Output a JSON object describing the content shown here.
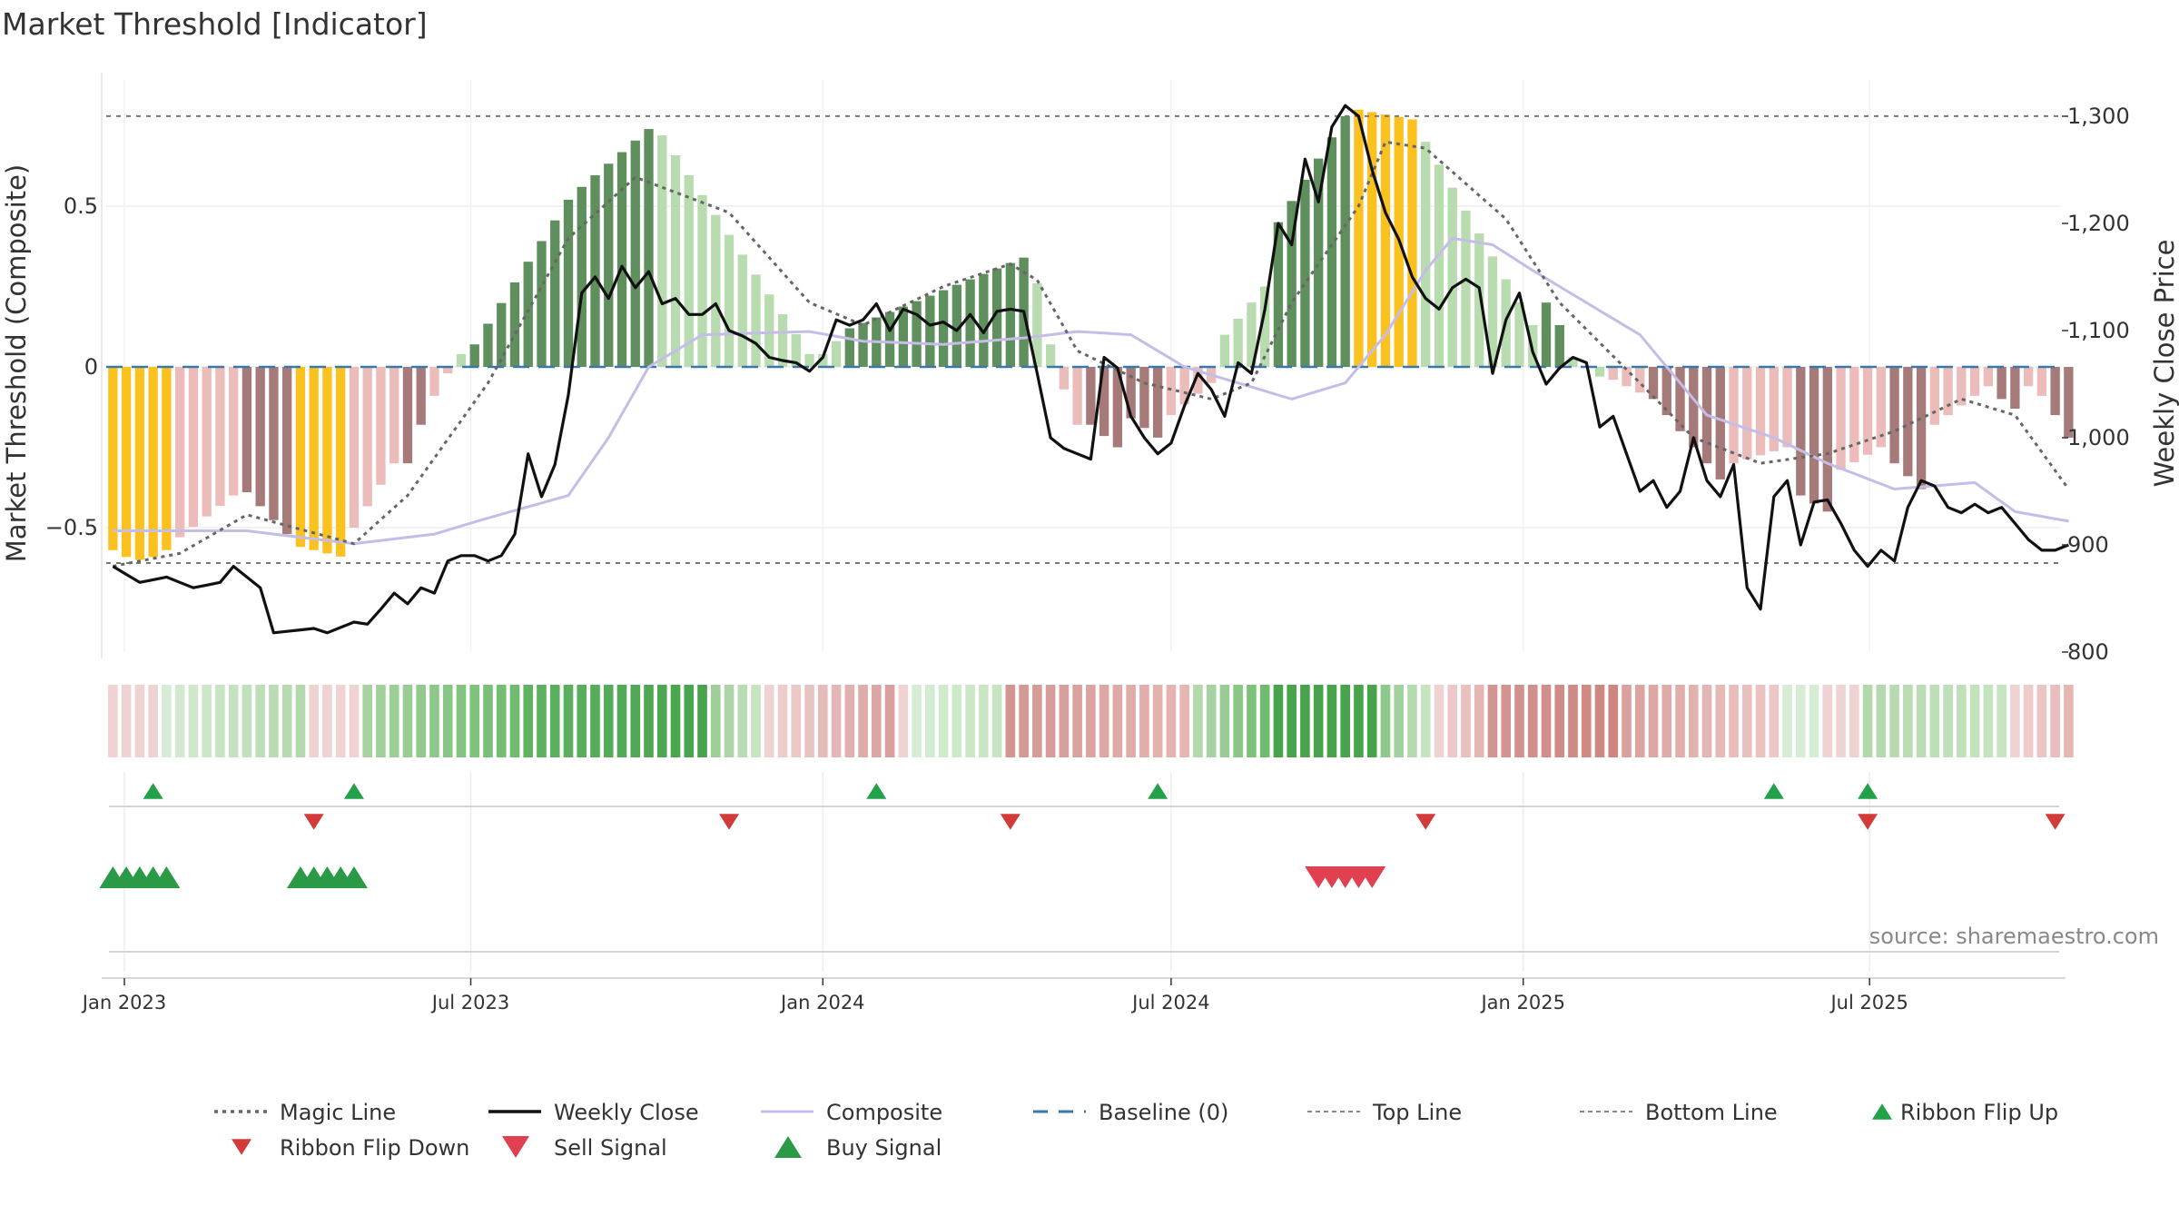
{
  "chart_data": {
    "type": "composite-indicator",
    "title": "Market Threshold [Indicator]",
    "ylabel_left": "Market Threshold (Composite)",
    "ylabel_right": "Weekly Close Price",
    "source": "source: sharemaestro.com",
    "start_date": "2022-12-26",
    "weeks": 146,
    "left_axis": {
      "ticks": [
        "0.5",
        "0",
        "−0.5"
      ],
      "tick_values": [
        0.5,
        0,
        -0.5
      ]
    },
    "right_axis": {
      "ticks": [
        "800",
        "900",
        "1,000",
        "1,100",
        "1,200",
        "1,300"
      ],
      "tick_values": [
        800,
        900,
        1000,
        1100,
        1200,
        1300
      ]
    },
    "x_ticks": [
      "Jan 2023",
      "Jul 2023",
      "Jan 2024",
      "Jul 2024",
      "Jan 2025",
      "Jul 2025"
    ],
    "x_tick_dates": [
      "2023-01-01",
      "2023-07-01",
      "2024-01-01",
      "2024-07-01",
      "2025-01-01",
      "2025-07-01"
    ],
    "top_line": 0.78,
    "bottom_line": -0.61,
    "baseline": 0,
    "composite_anchors": [
      [
        0,
        -0.51
      ],
      [
        10,
        -0.51
      ],
      [
        18,
        -0.55
      ],
      [
        24,
        -0.52
      ],
      [
        28,
        -0.47
      ],
      [
        34,
        -0.4
      ],
      [
        37,
        -0.22
      ],
      [
        40,
        0.0
      ],
      [
        44,
        0.1
      ],
      [
        52,
        0.11
      ],
      [
        56,
        0.08
      ],
      [
        62,
        0.07
      ],
      [
        68,
        0.09
      ],
      [
        72,
        0.11
      ],
      [
        76,
        0.1
      ],
      [
        80,
        0.0
      ],
      [
        84,
        -0.05
      ],
      [
        88,
        -0.1
      ],
      [
        92,
        -0.05
      ],
      [
        95,
        0.1
      ],
      [
        98,
        0.3
      ],
      [
        100,
        0.4
      ],
      [
        103,
        0.38
      ],
      [
        106,
        0.3
      ],
      [
        110,
        0.2
      ],
      [
        114,
        0.1
      ],
      [
        117,
        -0.05
      ],
      [
        119,
        -0.15
      ],
      [
        124,
        -0.22
      ],
      [
        128,
        -0.3
      ],
      [
        133,
        -0.38
      ],
      [
        139,
        -0.36
      ],
      [
        142,
        -0.45
      ],
      [
        146,
        -0.48
      ]
    ],
    "magic_anchors": [
      [
        0,
        -0.62
      ],
      [
        5,
        -0.58
      ],
      [
        10,
        -0.46
      ],
      [
        18,
        -0.55
      ],
      [
        22,
        -0.4
      ],
      [
        28,
        -0.05
      ],
      [
        34,
        0.4
      ],
      [
        39,
        0.59
      ],
      [
        46,
        0.48
      ],
      [
        52,
        0.2
      ],
      [
        56,
        0.13
      ],
      [
        62,
        0.25
      ],
      [
        67,
        0.32
      ],
      [
        69,
        0.27
      ],
      [
        72,
        0.05
      ],
      [
        77,
        -0.05
      ],
      [
        82,
        -0.1
      ],
      [
        85,
        -0.05
      ],
      [
        88,
        0.2
      ],
      [
        93,
        0.5
      ],
      [
        95,
        0.7
      ],
      [
        98,
        0.68
      ],
      [
        104,
        0.46
      ],
      [
        108,
        0.2
      ],
      [
        114,
        -0.05
      ],
      [
        118,
        -0.22
      ],
      [
        123,
        -0.3
      ],
      [
        128,
        -0.27
      ],
      [
        133,
        -0.2
      ],
      [
        138,
        -0.1
      ],
      [
        142,
        -0.15
      ],
      [
        146,
        -0.38
      ]
    ],
    "price_anchors": [
      [
        0,
        880
      ],
      [
        2,
        865
      ],
      [
        4,
        870
      ],
      [
        6,
        860
      ],
      [
        8,
        865
      ],
      [
        9,
        880
      ],
      [
        11,
        860
      ],
      [
        12,
        818
      ],
      [
        15,
        822
      ],
      [
        16,
        818
      ],
      [
        18,
        828
      ],
      [
        19,
        826
      ],
      [
        20,
        840
      ],
      [
        21,
        855
      ],
      [
        22,
        845
      ],
      [
        23,
        860
      ],
      [
        24,
        855
      ],
      [
        25,
        885
      ],
      [
        26,
        890
      ],
      [
        27,
        890
      ],
      [
        28,
        885
      ],
      [
        29,
        890
      ],
      [
        30,
        910
      ],
      [
        31,
        985
      ],
      [
        32,
        945
      ],
      [
        33,
        975
      ],
      [
        34,
        1040
      ],
      [
        35,
        1135
      ],
      [
        36,
        1150
      ],
      [
        37,
        1130
      ],
      [
        38,
        1160
      ],
      [
        39,
        1140
      ],
      [
        40,
        1155
      ],
      [
        41,
        1125
      ],
      [
        42,
        1130
      ],
      [
        43,
        1115
      ],
      [
        44,
        1115
      ],
      [
        45,
        1125
      ],
      [
        46,
        1100
      ],
      [
        47,
        1095
      ],
      [
        48,
        1088
      ],
      [
        49,
        1075
      ],
      [
        50,
        1072
      ],
      [
        51,
        1070
      ],
      [
        52,
        1062
      ],
      [
        53,
        1075
      ],
      [
        54,
        1110
      ],
      [
        55,
        1105
      ],
      [
        56,
        1110
      ],
      [
        57,
        1125
      ],
      [
        58,
        1100
      ],
      [
        59,
        1120
      ],
      [
        60,
        1115
      ],
      [
        61,
        1105
      ],
      [
        62,
        1108
      ],
      [
        63,
        1100
      ],
      [
        64,
        1115
      ],
      [
        65,
        1098
      ],
      [
        66,
        1118
      ],
      [
        67,
        1120
      ],
      [
        68,
        1118
      ],
      [
        69,
        1060
      ],
      [
        70,
        1000
      ],
      [
        71,
        990
      ],
      [
        72,
        985
      ],
      [
        73,
        980
      ],
      [
        74,
        1075
      ],
      [
        75,
        1065
      ],
      [
        76,
        1020
      ],
      [
        77,
        1000
      ],
      [
        78,
        985
      ],
      [
        79,
        995
      ],
      [
        80,
        1030
      ],
      [
        81,
        1060
      ],
      [
        82,
        1045
      ],
      [
        83,
        1020
      ],
      [
        84,
        1070
      ],
      [
        85,
        1060
      ],
      [
        86,
        1120
      ],
      [
        87,
        1200
      ],
      [
        88,
        1180
      ],
      [
        89,
        1260
      ],
      [
        90,
        1220
      ],
      [
        91,
        1290
      ],
      [
        92,
        1310
      ],
      [
        93,
        1300
      ],
      [
        94,
        1250
      ],
      [
        95,
        1210
      ],
      [
        96,
        1185
      ],
      [
        97,
        1150
      ],
      [
        98,
        1130
      ],
      [
        99,
        1120
      ],
      [
        100,
        1140
      ],
      [
        101,
        1148
      ],
      [
        102,
        1140
      ],
      [
        103,
        1060
      ],
      [
        104,
        1110
      ],
      [
        105,
        1135
      ],
      [
        106,
        1080
      ],
      [
        107,
        1050
      ],
      [
        108,
        1065
      ],
      [
        109,
        1075
      ],
      [
        110,
        1070
      ],
      [
        111,
        1010
      ],
      [
        112,
        1020
      ],
      [
        113,
        985
      ],
      [
        114,
        950
      ],
      [
        115,
        960
      ],
      [
        116,
        935
      ],
      [
        117,
        950
      ],
      [
        118,
        1000
      ],
      [
        119,
        960
      ],
      [
        120,
        945
      ],
      [
        121,
        975
      ],
      [
        122,
        860
      ],
      [
        123,
        840
      ],
      [
        124,
        945
      ],
      [
        125,
        960
      ],
      [
        126,
        900
      ],
      [
        127,
        940
      ],
      [
        128,
        942
      ],
      [
        129,
        920
      ],
      [
        130,
        895
      ],
      [
        131,
        880
      ],
      [
        132,
        895
      ],
      [
        133,
        885
      ],
      [
        134,
        935
      ],
      [
        135,
        960
      ],
      [
        136,
        955
      ],
      [
        137,
        935
      ],
      [
        138,
        930
      ],
      [
        139,
        938
      ],
      [
        140,
        930
      ],
      [
        141,
        935
      ],
      [
        142,
        920
      ],
      [
        143,
        905
      ],
      [
        144,
        895
      ],
      [
        145,
        895
      ],
      [
        146,
        900
      ]
    ],
    "bar_segments": [
      {
        "from": 0,
        "to": 4,
        "shape": "trough",
        "peak": -0.6,
        "edge": -0.57,
        "color": "#fbc21f"
      },
      {
        "from": 5,
        "to": 9,
        "shape": "linear",
        "start": -0.53,
        "end": -0.4,
        "color": "#ebbcb9"
      },
      {
        "from": 10,
        "to": 13,
        "shape": "linear",
        "start": -0.39,
        "end": -0.52,
        "color": "#a57a79"
      },
      {
        "from": 14,
        "to": 17,
        "shape": "linear",
        "start": -0.56,
        "end": -0.59,
        "color": "#fbc21f"
      },
      {
        "from": 18,
        "to": 21,
        "shape": "linear",
        "start": -0.5,
        "end": -0.3,
        "color": "#ebbcb9"
      },
      {
        "from": 22,
        "to": 23,
        "shape": "linear",
        "start": -0.3,
        "end": -0.18,
        "color": "#a57a79"
      },
      {
        "from": 24,
        "to": 25,
        "shape": "linear",
        "start": -0.09,
        "end": -0.02,
        "color": "#ebbcb9"
      },
      {
        "from": 26,
        "to": 26,
        "shape": "linear",
        "start": 0.04,
        "end": 0.04,
        "color": "#b8dcb0"
      },
      {
        "from": 27,
        "to": 34,
        "shape": "linear",
        "start": 0.07,
        "end": 0.52,
        "color": "#5e8f5d"
      },
      {
        "from": 35,
        "to": 40,
        "shape": "linear",
        "start": 0.56,
        "end": 0.74,
        "color": "#5e8f5d"
      },
      {
        "from": 41,
        "to": 52,
        "shape": "linear",
        "start": 0.72,
        "end": 0.04,
        "color": "#b8dcb0"
      },
      {
        "from": 53,
        "to": 54,
        "shape": "linear",
        "start": 0.04,
        "end": 0.08,
        "color": "#b8dcb0"
      },
      {
        "from": 55,
        "to": 68,
        "shape": "linear",
        "start": 0.12,
        "end": 0.34,
        "color": "#5e8f5d"
      },
      {
        "from": 69,
        "to": 70,
        "shape": "linear",
        "start": 0.26,
        "end": 0.07,
        "color": "#b8dcb0"
      },
      {
        "from": 71,
        "to": 72,
        "shape": "linear",
        "start": -0.07,
        "end": -0.18,
        "color": "#ebbcb9"
      },
      {
        "from": 73,
        "to": 75,
        "shape": "linear",
        "start": -0.18,
        "end": -0.25,
        "color": "#a57a79"
      },
      {
        "from": 76,
        "to": 78,
        "shape": "linear",
        "start": -0.16,
        "end": -0.22,
        "color": "#a57a79"
      },
      {
        "from": 79,
        "to": 82,
        "shape": "linear",
        "start": -0.15,
        "end": -0.05,
        "color": "#ebbcb9"
      },
      {
        "from": 83,
        "to": 86,
        "shape": "linear",
        "start": 0.1,
        "end": 0.25,
        "color": "#b8dcb0"
      },
      {
        "from": 87,
        "to": 92,
        "shape": "linear",
        "start": 0.45,
        "end": 0.78,
        "color": "#5e8f5d"
      },
      {
        "from": 93,
        "to": 97,
        "shape": "linear",
        "start": 0.8,
        "end": 0.77,
        "color": "#fbc21f"
      },
      {
        "from": 98,
        "to": 106,
        "shape": "linear",
        "start": 0.7,
        "end": 0.13,
        "color": "#b8dcb0"
      },
      {
        "from": 107,
        "to": 108,
        "shape": "linear",
        "start": 0.2,
        "end": 0.13,
        "color": "#5e8f5d"
      },
      {
        "from": 109,
        "to": 111,
        "shape": "linear",
        "start": 0.03,
        "end": -0.03,
        "color": "#b8dcb0"
      },
      {
        "from": 112,
        "to": 114,
        "shape": "linear",
        "start": -0.04,
        "end": -0.08,
        "color": "#ebbcb9"
      },
      {
        "from": 115,
        "to": 120,
        "shape": "linear",
        "start": -0.1,
        "end": -0.35,
        "color": "#a57a79"
      },
      {
        "from": 121,
        "to": 125,
        "shape": "linear",
        "start": -0.3,
        "end": -0.25,
        "color": "#ebbcb9"
      },
      {
        "from": 126,
        "to": 128,
        "shape": "linear",
        "start": -0.4,
        "end": -0.45,
        "color": "#a57a79"
      },
      {
        "from": 129,
        "to": 132,
        "shape": "linear",
        "start": -0.32,
        "end": -0.25,
        "color": "#ebbcb9"
      },
      {
        "from": 133,
        "to": 135,
        "shape": "linear",
        "start": -0.3,
        "end": -0.38,
        "color": "#a57a79"
      },
      {
        "from": 136,
        "to": 140,
        "shape": "linear",
        "start": -0.18,
        "end": -0.06,
        "color": "#ebbcb9"
      },
      {
        "from": 141,
        "to": 142,
        "shape": "linear",
        "start": -0.1,
        "end": -0.13,
        "color": "#a57a79"
      },
      {
        "from": 143,
        "to": 144,
        "shape": "linear",
        "start": -0.06,
        "end": -0.09,
        "color": "#ebbcb9"
      },
      {
        "from": 145,
        "to": 146,
        "shape": "linear",
        "start": -0.15,
        "end": -0.22,
        "color": "#a57a79"
      }
    ],
    "ribbon_segments": [
      {
        "from": 0,
        "to": 3,
        "colors": [
          "#efd3d2",
          "#efd3d2"
        ]
      },
      {
        "from": 4,
        "to": 14,
        "colors": [
          "#d6ecd4",
          "#b3d8ac"
        ]
      },
      {
        "from": 15,
        "to": 18,
        "colors": [
          "#efd3d2",
          "#efd3d2"
        ]
      },
      {
        "from": 19,
        "to": 30,
        "colors": [
          "#a6d39f",
          "#6fbb6f"
        ]
      },
      {
        "from": 31,
        "to": 44,
        "colors": [
          "#5fb261",
          "#47a44d"
        ]
      },
      {
        "from": 45,
        "to": 48,
        "colors": [
          "#9fce98",
          "#c6e4c0"
        ]
      },
      {
        "from": 49,
        "to": 58,
        "colors": [
          "#efd3d2",
          "#d9a09d"
        ]
      },
      {
        "from": 59,
        "to": 59,
        "colors": [
          "#efd3d2",
          "#efd3d2"
        ]
      },
      {
        "from": 60,
        "to": 66,
        "colors": [
          "#d6ecd4",
          "#c6e4c0"
        ]
      },
      {
        "from": 67,
        "to": 80,
        "colors": [
          "#d39592",
          "#e6b6b3"
        ]
      },
      {
        "from": 81,
        "to": 86,
        "colors": [
          "#b3d8ac",
          "#6fbb6f"
        ]
      },
      {
        "from": 87,
        "to": 94,
        "colors": [
          "#47a44d",
          "#47a44d"
        ]
      },
      {
        "from": 95,
        "to": 98,
        "colors": [
          "#8fc88b",
          "#c6e4c0"
        ]
      },
      {
        "from": 99,
        "to": 102,
        "colors": [
          "#efd3d2",
          "#e6b6b3"
        ]
      },
      {
        "from": 103,
        "to": 112,
        "colors": [
          "#d39592",
          "#cf8580"
        ]
      },
      {
        "from": 113,
        "to": 124,
        "colors": [
          "#d9a09d",
          "#ecc7c5"
        ]
      },
      {
        "from": 125,
        "to": 127,
        "colors": [
          "#d6ecd4",
          "#d6ecd4"
        ]
      },
      {
        "from": 128,
        "to": 130,
        "colors": [
          "#efd3d2",
          "#efd3d2"
        ]
      },
      {
        "from": 131,
        "to": 141,
        "colors": [
          "#b3d8ac",
          "#c6e4c0"
        ]
      },
      {
        "from": 142,
        "to": 146,
        "colors": [
          "#efd3d2",
          "#e6b6b3"
        ]
      }
    ],
    "ribbon_flip_up_weeks": [
      3,
      18,
      57,
      78,
      124,
      131
    ],
    "ribbon_flip_down_weeks": [
      15,
      46,
      67,
      98,
      131,
      145
    ],
    "buy_signal_weeks": [
      0,
      1,
      2,
      3,
      4,
      14,
      15,
      16,
      17,
      18
    ],
    "sell_signal_weeks": [
      90,
      91,
      92,
      93,
      94
    ],
    "legend": [
      {
        "label": "Magic Line",
        "type": "dotted",
        "color": "#666666"
      },
      {
        "label": "Weekly Close",
        "type": "solid",
        "color": "#111111"
      },
      {
        "label": "Composite",
        "type": "solid",
        "color": "#c4bde8"
      },
      {
        "label": "Baseline (0)",
        "type": "dashed",
        "color": "#3a78a8"
      },
      {
        "label": "Top Line",
        "type": "dotted-thin",
        "color": "#888888"
      },
      {
        "label": "Bottom Line",
        "type": "dotted-thin",
        "color": "#888888"
      },
      {
        "label": "Ribbon Flip Up",
        "type": "tri-up",
        "color": "#22a04a"
      },
      {
        "label": "Ribbon Flip Down",
        "type": "tri-down",
        "color": "#d33b3b"
      },
      {
        "label": "Sell Signal",
        "type": "tri-down-big",
        "color": "#e04050"
      },
      {
        "label": "Buy Signal",
        "type": "tri-up-big",
        "color": "#2a9a46"
      }
    ]
  }
}
